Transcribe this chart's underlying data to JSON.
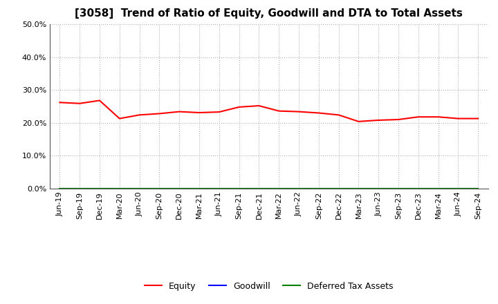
{
  "title": "[3058]  Trend of Ratio of Equity, Goodwill and DTA to Total Assets",
  "x_labels": [
    "Jun-19",
    "Sep-19",
    "Dec-19",
    "Mar-20",
    "Jun-20",
    "Sep-20",
    "Dec-20",
    "Mar-21",
    "Jun-21",
    "Sep-21",
    "Dec-21",
    "Mar-22",
    "Jun-22",
    "Sep-22",
    "Dec-22",
    "Mar-23",
    "Jun-23",
    "Sep-23",
    "Dec-23",
    "Mar-24",
    "Jun-24",
    "Sep-24"
  ],
  "equity": [
    0.262,
    0.259,
    0.268,
    0.213,
    0.224,
    0.228,
    0.234,
    0.231,
    0.233,
    0.248,
    0.252,
    0.236,
    0.234,
    0.23,
    0.224,
    0.204,
    0.208,
    0.21,
    0.218,
    0.218,
    0.213,
    0.213
  ],
  "goodwill": [
    0.0,
    0.0,
    0.0,
    0.0,
    0.0,
    0.0,
    0.0,
    0.0,
    0.0,
    0.0,
    0.0,
    0.0,
    0.0,
    0.0,
    0.0,
    0.0,
    0.0,
    0.0,
    0.0,
    0.0,
    0.0,
    0.0
  ],
  "dta": [
    0.0,
    0.0,
    0.0,
    0.0,
    0.0,
    0.0,
    0.0,
    0.0,
    0.0,
    0.0,
    0.0,
    0.0,
    0.0,
    0.0,
    0.0,
    0.0,
    0.0,
    0.0,
    0.0,
    0.0,
    0.0,
    0.0
  ],
  "equity_color": "#ff0000",
  "goodwill_color": "#0000ff",
  "dta_color": "#008000",
  "ylim": [
    0.0,
    0.5
  ],
  "yticks": [
    0.0,
    0.1,
    0.2,
    0.3,
    0.4,
    0.5
  ],
  "background_color": "#ffffff",
  "grid_color": "#b0b0b0",
  "title_fontsize": 11,
  "tick_fontsize": 8,
  "legend_labels": [
    "Equity",
    "Goodwill",
    "Deferred Tax Assets"
  ],
  "legend_fontsize": 9
}
